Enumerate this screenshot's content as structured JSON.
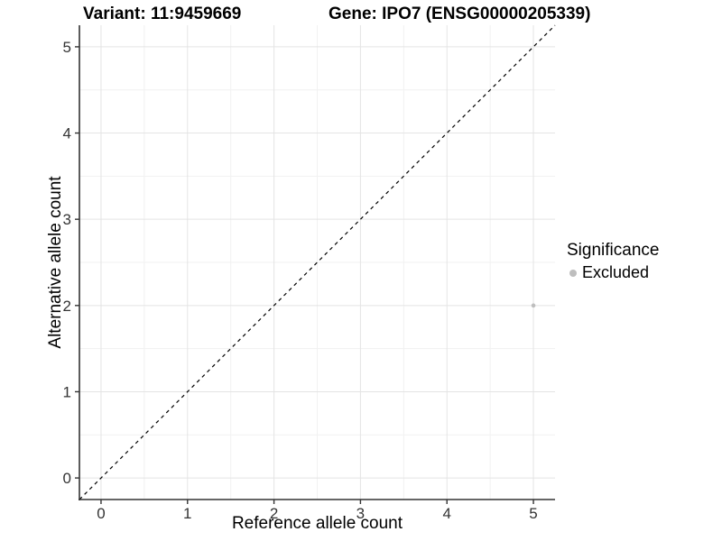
{
  "chart_data": {
    "type": "scatter",
    "title_left": "Variant: 11:9459669",
    "title_right": "Gene: IPO7 (ENSG00000205339)",
    "xlabel": "Reference allele count",
    "ylabel": "Alternative allele count",
    "xlim": [
      -0.25,
      5.25
    ],
    "ylim": [
      -0.25,
      5.25
    ],
    "xticks": [
      0,
      1,
      2,
      3,
      4,
      5
    ],
    "yticks": [
      0,
      1,
      2,
      3,
      4,
      5
    ],
    "minor_xticks": [
      0.5,
      1.5,
      2.5,
      3.5,
      4.5
    ],
    "minor_yticks": [
      0.5,
      1.5,
      2.5,
      3.5,
      4.5
    ],
    "grid": true,
    "identity_line": {
      "style": "dashed",
      "color": "#000000"
    },
    "series": [
      {
        "name": "Excluded",
        "color": "#bebebe",
        "points": [
          {
            "x": 5,
            "y": 2
          }
        ]
      }
    ],
    "legend": {
      "title": "Significance",
      "position": "right",
      "entries": [
        {
          "label": "Excluded",
          "color": "#bebebe"
        }
      ]
    },
    "colors": {
      "grid_major": "#e4e4e4",
      "grid_minor": "#f1f1f1",
      "axis_line": "#333333",
      "tick_label": "#333333"
    }
  }
}
